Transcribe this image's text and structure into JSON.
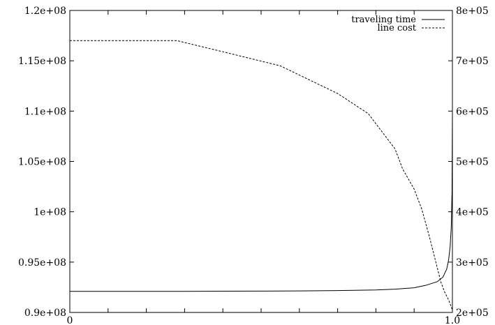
{
  "chart_data": {
    "type": "line",
    "title": "",
    "xlabel": "",
    "ylabel": "",
    "y2label": "",
    "xlim": [
      0,
      1.0
    ],
    "ylim": [
      90000000,
      120000000
    ],
    "y2lim": [
      200000,
      800000
    ],
    "grid": false,
    "legend_position": "top-right",
    "x_ticks": [
      {
        "value": 0,
        "label": "0"
      },
      {
        "value": 1.0,
        "label": "1.0"
      }
    ],
    "y_ticks": [
      {
        "value": 90000000,
        "label": "0.9e+08"
      },
      {
        "value": 95000000,
        "label": "0.95e+08"
      },
      {
        "value": 100000000,
        "label": "1e+08"
      },
      {
        "value": 105000000,
        "label": "1.05e+08"
      },
      {
        "value": 110000000,
        "label": "1.1e+08"
      },
      {
        "value": 115000000,
        "label": "1.15e+08"
      },
      {
        "value": 120000000,
        "label": "1.2e+08"
      }
    ],
    "y2_ticks": [
      {
        "value": 200000,
        "label": "2e+05"
      },
      {
        "value": 300000,
        "label": "3e+05"
      },
      {
        "value": 400000,
        "label": "4e+05"
      },
      {
        "value": 500000,
        "label": "5e+05"
      },
      {
        "value": 600000,
        "label": "6e+05"
      },
      {
        "value": 700000,
        "label": "7e+05"
      },
      {
        "value": 800000,
        "label": "8e+05"
      }
    ],
    "series": [
      {
        "name": "traveling time",
        "axis": "left",
        "style": "solid",
        "x": [
          0,
          0.1,
          0.2,
          0.3,
          0.4,
          0.5,
          0.6,
          0.7,
          0.8,
          0.85,
          0.9,
          0.93,
          0.96,
          0.975,
          0.985,
          0.99,
          0.994,
          0.997,
          0.999,
          1.0
        ],
        "y": [
          92100000,
          92100000,
          92100000,
          92100000,
          92110000,
          92120000,
          92140000,
          92170000,
          92230000,
          92310000,
          92450000,
          92690000,
          93050000,
          93500000,
          94300000,
          95200000,
          96500000,
          98500000,
          102000000,
          110000000
        ]
      },
      {
        "name": "line cost",
        "axis": "right",
        "style": "dashed",
        "x": [
          0,
          0.15,
          0.28,
          0.4,
          0.55,
          0.7,
          0.78,
          0.82,
          0.85,
          0.87,
          0.9,
          0.92,
          0.94,
          0.96,
          0.97,
          0.98,
          0.99,
          1.0
        ],
        "y": [
          740000,
          740000,
          740000,
          718000,
          690000,
          635000,
          595000,
          555000,
          525000,
          485000,
          445000,
          405000,
          350000,
          290000,
          260000,
          240000,
          225000,
          205000
        ]
      }
    ]
  }
}
